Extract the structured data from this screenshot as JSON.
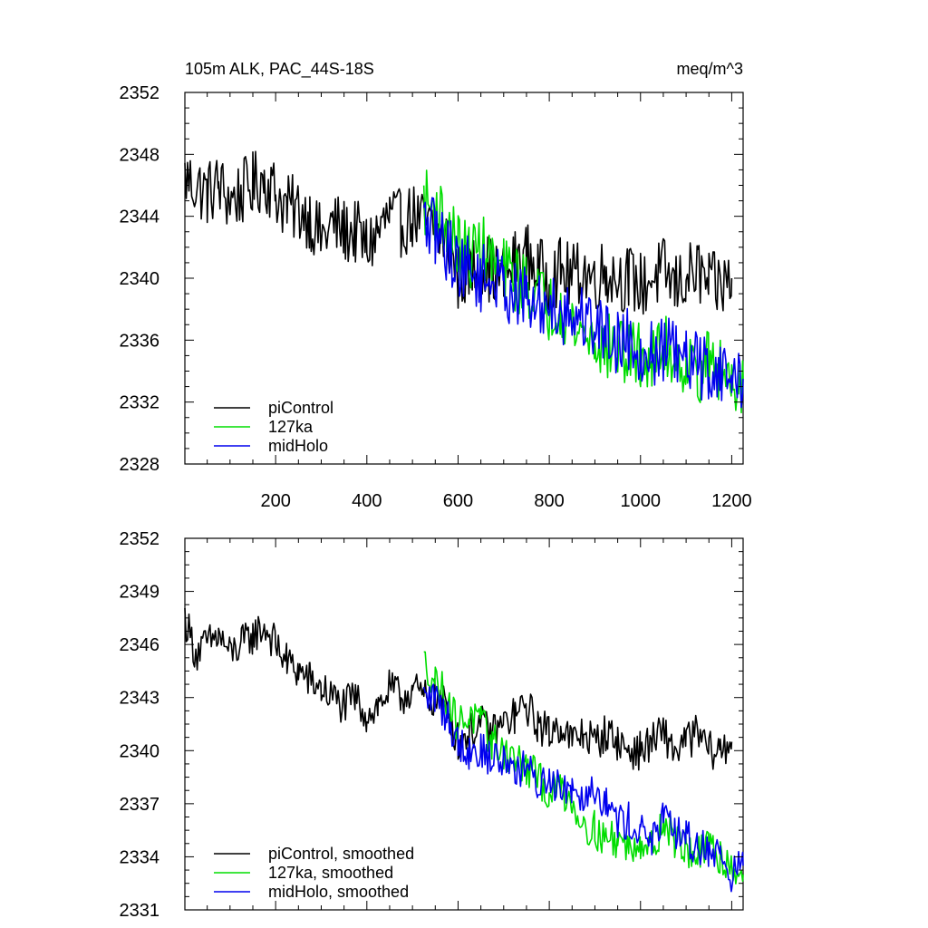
{
  "chart_data": [
    {
      "type": "line",
      "title": "105m ALK, PAC_44S-18S",
      "units": "meq/m^3",
      "xlabel": "",
      "ylabel": "",
      "xlim": [
        1,
        1225
      ],
      "ylim": [
        2328,
        2352
      ],
      "xticks": [
        200,
        400,
        600,
        800,
        1000,
        1200
      ],
      "yticks": [
        2328,
        2332,
        2336,
        2340,
        2344,
        2348,
        2352
      ],
      "legend_position": "bottom-left",
      "series": [
        {
          "name": "piControl",
          "color": "#000000",
          "x": [
            1,
            25,
            50,
            75,
            100,
            125,
            150,
            175,
            200,
            225,
            250,
            275,
            300,
            325,
            350,
            375,
            400,
            425,
            450,
            475,
            500,
            525,
            550,
            575,
            600,
            625,
            650,
            675,
            700,
            725,
            750,
            775,
            800,
            825,
            850,
            875,
            900,
            925,
            950,
            975,
            1000,
            1025,
            1050,
            1075,
            1100,
            1125,
            1150,
            1175,
            1200
          ],
          "y": [
            2346.5,
            2346.0,
            2345.5,
            2346.0,
            2345.0,
            2345.5,
            2346.0,
            2346.5,
            2345.5,
            2344.5,
            2344.5,
            2344.0,
            2342.5,
            2343.5,
            2343.0,
            2343.0,
            2342.0,
            2343.0,
            2344.0,
            2343.5,
            2344.0,
            2343.5,
            2343.0,
            2342.5,
            2340.0,
            2340.5,
            2341.0,
            2340.5,
            2340.0,
            2341.0,
            2341.5,
            2340.5,
            2340.0,
            2340.5,
            2340.0,
            2340.5,
            2340.0,
            2340.5,
            2340.0,
            2340.0,
            2339.5,
            2340.0,
            2340.5,
            2339.5,
            2340.0,
            2340.5,
            2339.5,
            2339.5,
            2340.0
          ]
        },
        {
          "name": "127ka",
          "color": "#00dd00",
          "x": [
            525,
            550,
            575,
            600,
            625,
            650,
            675,
            700,
            725,
            750,
            775,
            800,
            825,
            850,
            875,
            900,
            925,
            950,
            975,
            1000,
            1025,
            1050,
            1075,
            1100,
            1125,
            1150,
            1175,
            1200,
            1225
          ],
          "y": [
            2345.0,
            2344.5,
            2343.5,
            2342.0,
            2341.5,
            2342.0,
            2341.0,
            2340.5,
            2340.0,
            2339.5,
            2339.0,
            2338.0,
            2338.5,
            2337.0,
            2336.5,
            2336.0,
            2335.5,
            2335.5,
            2335.0,
            2335.0,
            2334.5,
            2335.5,
            2335.0,
            2334.5,
            2334.0,
            2334.5,
            2334.0,
            2333.5,
            2333.5
          ]
        },
        {
          "name": "midHolo",
          "color": "#0000ee",
          "x": [
            525,
            550,
            575,
            600,
            625,
            650,
            675,
            700,
            725,
            750,
            775,
            800,
            825,
            850,
            875,
            900,
            925,
            950,
            975,
            1000,
            1025,
            1050,
            1075,
            1100,
            1125,
            1150,
            1175,
            1200,
            1225
          ],
          "y": [
            2343.5,
            2343.0,
            2342.0,
            2341.0,
            2340.5,
            2340.0,
            2340.0,
            2339.5,
            2339.0,
            2338.5,
            2338.0,
            2338.5,
            2338.0,
            2337.5,
            2337.5,
            2337.0,
            2336.5,
            2336.0,
            2336.0,
            2335.5,
            2335.0,
            2335.5,
            2335.0,
            2334.5,
            2334.5,
            2334.0,
            2334.0,
            2333.5,
            2333.5
          ]
        }
      ],
      "legend": [
        "piControl",
        "127ka",
        "midHolo"
      ]
    },
    {
      "type": "line",
      "title": "",
      "xlabel": "",
      "ylabel": "",
      "xlim": [
        1,
        1225
      ],
      "ylim": [
        2331,
        2352
      ],
      "xticks": [
        200,
        400,
        600,
        800,
        1000,
        1200
      ],
      "xticklabels_shown": false,
      "yticks": [
        2331,
        2334,
        2337,
        2340,
        2343,
        2346,
        2349,
        2352
      ],
      "legend_position": "bottom-left",
      "series": [
        {
          "name": "piControl, smoothed",
          "color": "#000000",
          "x": [
            1,
            25,
            50,
            75,
            100,
            125,
            150,
            175,
            200,
            225,
            250,
            275,
            300,
            325,
            350,
            375,
            400,
            425,
            450,
            475,
            500,
            525,
            550,
            575,
            600,
            625,
            650,
            675,
            700,
            725,
            750,
            775,
            800,
            825,
            850,
            875,
            900,
            925,
            950,
            975,
            1000,
            1025,
            1050,
            1075,
            1100,
            1125,
            1150,
            1175,
            1200
          ],
          "y": [
            2347.5,
            2345.5,
            2346.0,
            2346.5,
            2345.5,
            2346.0,
            2346.5,
            2347.0,
            2346.0,
            2345.0,
            2344.5,
            2344.0,
            2343.5,
            2343.0,
            2342.5,
            2343.0,
            2342.0,
            2342.5,
            2343.5,
            2343.0,
            2343.5,
            2343.0,
            2343.0,
            2342.5,
            2340.5,
            2341.0,
            2341.5,
            2341.0,
            2341.5,
            2342.0,
            2342.5,
            2341.5,
            2341.0,
            2341.5,
            2340.5,
            2341.0,
            2340.5,
            2341.0,
            2340.5,
            2340.0,
            2340.0,
            2340.5,
            2341.0,
            2340.0,
            2340.5,
            2341.0,
            2340.0,
            2340.0,
            2340.5
          ]
        },
        {
          "name": "127ka, smoothed",
          "color": "#00dd00",
          "x": [
            525,
            550,
            575,
            600,
            625,
            650,
            675,
            700,
            725,
            750,
            775,
            800,
            825,
            850,
            875,
            900,
            925,
            950,
            975,
            1000,
            1025,
            1050,
            1075,
            1100,
            1125,
            1150,
            1175,
            1200,
            1225
          ],
          "y": [
            2345.0,
            2344.0,
            2343.0,
            2341.5,
            2342.0,
            2341.5,
            2340.5,
            2340.0,
            2339.5,
            2339.0,
            2338.5,
            2337.5,
            2338.0,
            2337.0,
            2336.0,
            2335.5,
            2335.0,
            2335.0,
            2334.5,
            2335.0,
            2334.5,
            2336.0,
            2335.0,
            2334.5,
            2334.0,
            2334.5,
            2334.0,
            2333.5,
            2333.0
          ]
        },
        {
          "name": "midHolo, smoothed",
          "color": "#0000ee",
          "x": [
            525,
            550,
            575,
            600,
            625,
            650,
            675,
            700,
            725,
            750,
            775,
            800,
            825,
            850,
            875,
            900,
            925,
            950,
            975,
            1000,
            1025,
            1050,
            1075,
            1100,
            1125,
            1150,
            1175,
            1200,
            1225
          ],
          "y": [
            2343.0,
            2343.0,
            2342.0,
            2340.5,
            2340.0,
            2340.0,
            2339.5,
            2339.5,
            2339.0,
            2339.0,
            2338.0,
            2338.5,
            2338.0,
            2338.0,
            2337.5,
            2338.0,
            2337.0,
            2336.0,
            2336.0,
            2335.5,
            2335.0,
            2336.0,
            2335.5,
            2335.0,
            2334.5,
            2334.5,
            2334.0,
            2333.0,
            2333.5
          ]
        }
      ],
      "legend": [
        "piControl, smoothed",
        "127ka, smoothed",
        "midHolo, smoothed"
      ]
    }
  ]
}
